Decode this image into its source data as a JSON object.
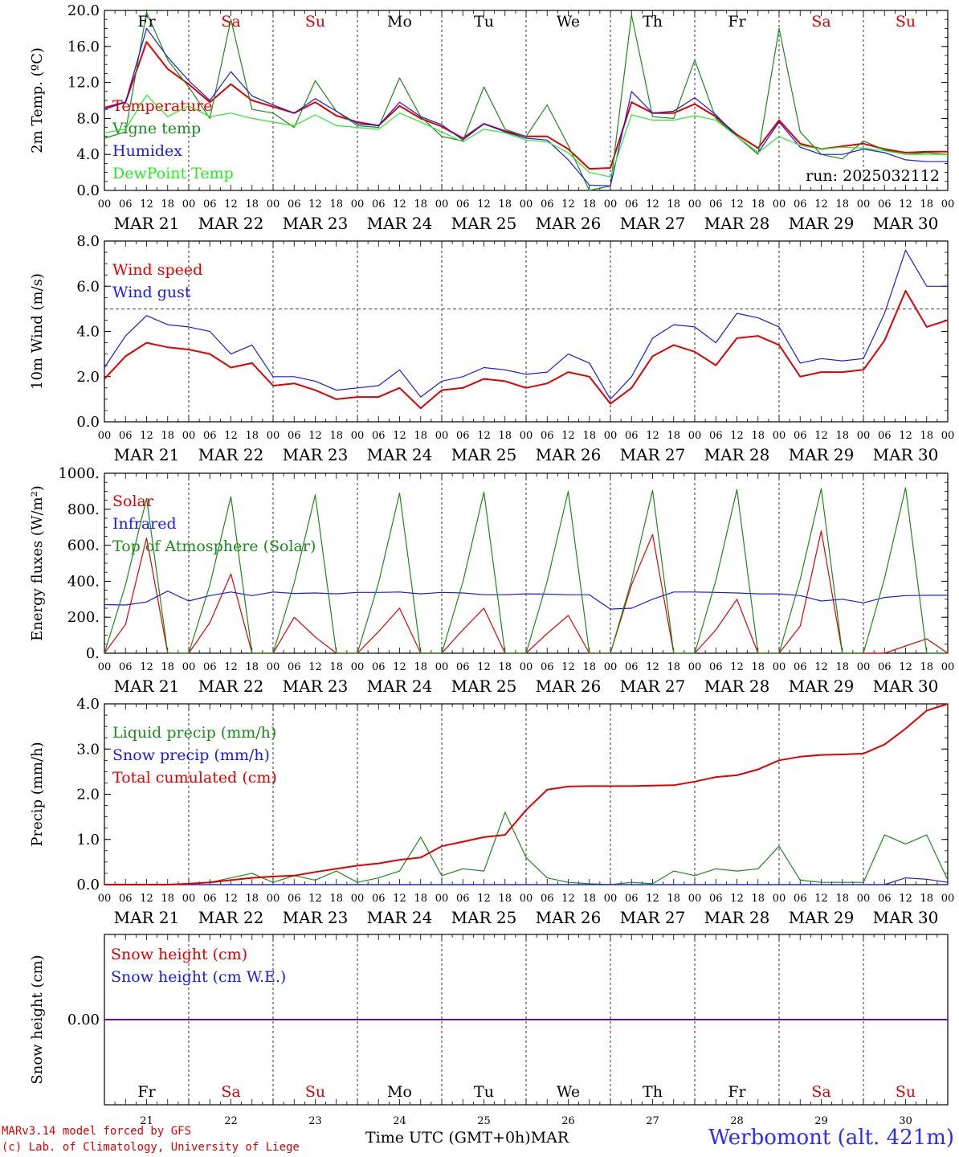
{
  "colors": {
    "red": "#e00000",
    "green": "#1a8a1a",
    "blue": "#1a1ae6",
    "lightgreen": "#22ee22",
    "black": "#000000"
  },
  "days": [
    {
      "abbr": "Fr",
      "date": "21",
      "month_label": "MAR 21",
      "weekend": false
    },
    {
      "abbr": "Sa",
      "date": "22",
      "month_label": "MAR 22",
      "weekend": true
    },
    {
      "abbr": "Su",
      "date": "23",
      "month_label": "MAR 23",
      "weekend": true
    },
    {
      "abbr": "Mo",
      "date": "24",
      "month_label": "MAR 24",
      "weekend": false
    },
    {
      "abbr": "Tu",
      "date": "25",
      "month_label": "MAR 25",
      "weekend": false
    },
    {
      "abbr": "We",
      "date": "26",
      "month_label": "MAR 26",
      "weekend": false
    },
    {
      "abbr": "Th",
      "date": "27",
      "month_label": "MAR 27",
      "weekend": false
    },
    {
      "abbr": "Fr",
      "date": "28",
      "month_label": "MAR 28",
      "weekend": false
    },
    {
      "abbr": "Sa",
      "date": "29",
      "month_label": "MAR 29",
      "weekend": true
    },
    {
      "abbr": "Su",
      "date": "30",
      "month_label": "MAR 30",
      "weekend": true
    }
  ],
  "hour_ticks": [
    "00",
    "06",
    "12",
    "18"
  ],
  "final_hour_tick": "00",
  "footer": {
    "credit_line1": "MARv3.14 model forced by GFS",
    "credit_line2": "(c) Lab. of Climatology, University of Liege",
    "axis_label": "Time UTC (GMT+0h)",
    "month": "MAR",
    "station": "Werbomont (alt. 421m)"
  },
  "chart_data": [
    {
      "type": "line",
      "ylabel": "2m Temp. (ºC)",
      "ylim": [
        0,
        20
      ],
      "yticks": [
        "0.0",
        "4.0",
        "8.0",
        "12.0",
        "16.0",
        "20.0"
      ],
      "ytick_values": [
        0,
        4,
        8,
        12,
        16,
        20
      ],
      "annotation": "run: 2025032112",
      "x_unit": "hours from 2025-03-21 00 UTC",
      "x": [
        0,
        6,
        12,
        18,
        24,
        30,
        36,
        42,
        48,
        54,
        60,
        66,
        72,
        78,
        84,
        90,
        96,
        102,
        108,
        114,
        120,
        126,
        132,
        138,
        144,
        150,
        156,
        162,
        168,
        174,
        180,
        186,
        192,
        198,
        204,
        210,
        216,
        222,
        228,
        234,
        240
      ],
      "series": [
        {
          "name": "Temperature",
          "color": "red",
          "values": [
            9.2,
            9.8,
            16.5,
            13.5,
            11.8,
            9.8,
            11.8,
            10.0,
            9.3,
            8.6,
            9.8,
            8.3,
            7.6,
            7.2,
            9.4,
            8.0,
            7.1,
            5.8,
            7.4,
            6.6,
            6.0,
            6.0,
            4.6,
            2.4,
            2.5,
            9.8,
            8.6,
            8.6,
            9.6,
            8.2,
            6.2,
            4.7,
            7.8,
            5.2,
            4.6,
            4.9,
            5.2,
            4.6,
            4.2,
            4.3,
            4.3
          ]
        },
        {
          "name": "Vigne temp",
          "color": "green",
          "values": [
            5.8,
            6.5,
            19.8,
            14.5,
            11.5,
            8.0,
            19.0,
            9.0,
            8.6,
            7.0,
            12.2,
            8.8,
            7.2,
            7.0,
            12.5,
            8.2,
            6.0,
            5.5,
            11.5,
            6.8,
            6.0,
            9.5,
            5.0,
            -1.0,
            0.5,
            19.5,
            8.2,
            8.0,
            14.5,
            8.0,
            6.0,
            4.0,
            18.0,
            6.5,
            4.0,
            3.5,
            5.5,
            4.5,
            4.0,
            4.2,
            4.0
          ]
        },
        {
          "name": "Humidex",
          "color": "blue",
          "values": [
            9.0,
            9.8,
            18.0,
            14.8,
            12.2,
            10.0,
            13.2,
            10.5,
            9.5,
            8.6,
            10.2,
            8.8,
            7.4,
            7.2,
            9.8,
            8.2,
            7.3,
            5.6,
            7.4,
            6.5,
            5.8,
            5.6,
            3.4,
            0.6,
            0.5,
            11.0,
            8.6,
            8.8,
            10.3,
            8.4,
            6.0,
            4.2,
            7.6,
            4.8,
            4.0,
            4.0,
            4.6,
            4.2,
            3.4,
            3.2,
            3.2
          ]
        },
        {
          "name": "DewPoint Temp",
          "color": "lightgreen",
          "values": [
            6.4,
            6.8,
            10.6,
            8.2,
            9.4,
            8.2,
            8.6,
            8.0,
            7.6,
            7.2,
            8.4,
            7.2,
            7.0,
            6.8,
            8.6,
            7.6,
            6.5,
            5.4,
            6.8,
            6.4,
            5.6,
            5.4,
            4.2,
            2.0,
            1.5,
            8.4,
            7.8,
            7.8,
            8.3,
            7.8,
            6.0,
            4.2,
            6.0,
            5.0,
            4.6,
            4.8,
            4.7,
            4.4,
            4.0,
            4.0,
            4.0
          ]
        }
      ]
    },
    {
      "type": "line",
      "ylabel": "10m Wind (m/s)",
      "ylim": [
        0,
        8
      ],
      "yticks": [
        "0.0",
        "2.0",
        "4.0",
        "6.0",
        "8.0"
      ],
      "ytick_values": [
        0,
        2,
        4,
        6,
        8
      ],
      "reference_line": 5.0,
      "x_unit": "hours from 2025-03-21 00 UTC",
      "x": [
        0,
        6,
        12,
        18,
        24,
        30,
        36,
        42,
        48,
        54,
        60,
        66,
        72,
        78,
        84,
        90,
        96,
        102,
        108,
        114,
        120,
        126,
        132,
        138,
        144,
        150,
        156,
        162,
        168,
        174,
        180,
        186,
        192,
        198,
        204,
        210,
        216,
        222,
        228,
        234,
        240
      ],
      "series": [
        {
          "name": "Wind speed",
          "color": "red",
          "values": [
            1.9,
            2.9,
            3.5,
            3.3,
            3.2,
            3.0,
            2.4,
            2.6,
            1.6,
            1.7,
            1.4,
            1.0,
            1.1,
            1.1,
            1.5,
            0.6,
            1.4,
            1.5,
            1.9,
            1.8,
            1.5,
            1.7,
            2.2,
            2.0,
            0.8,
            1.5,
            2.9,
            3.4,
            3.1,
            2.5,
            3.7,
            3.8,
            3.4,
            2.0,
            2.2,
            2.2,
            2.3,
            3.6,
            5.8,
            4.2,
            4.5
          ]
        },
        {
          "name": "Wind gust",
          "color": "blue",
          "values": [
            2.4,
            3.8,
            4.7,
            4.3,
            4.2,
            4.0,
            3.0,
            3.4,
            2.0,
            2.0,
            1.8,
            1.4,
            1.5,
            1.6,
            2.3,
            1.1,
            1.8,
            2.0,
            2.4,
            2.3,
            2.1,
            2.2,
            3.0,
            2.6,
            1.0,
            2.0,
            3.7,
            4.3,
            4.2,
            3.5,
            4.8,
            4.6,
            4.2,
            2.6,
            2.8,
            2.7,
            2.8,
            4.8,
            7.6,
            6.0,
            6.0
          ]
        }
      ]
    },
    {
      "type": "line",
      "ylabel": "Energy fluxes (W/m²)",
      "ylim": [
        0,
        1000
      ],
      "yticks": [
        "0.",
        "200.",
        "400.",
        "600.",
        "800.",
        "1000."
      ],
      "ytick_values": [
        0,
        200,
        400,
        600,
        800,
        1000
      ],
      "x_unit": "hours from 2025-03-21 00 UTC",
      "x": [
        0,
        6,
        12,
        18,
        24,
        30,
        36,
        42,
        48,
        54,
        60,
        66,
        72,
        78,
        84,
        90,
        96,
        102,
        108,
        114,
        120,
        126,
        132,
        138,
        144,
        150,
        156,
        162,
        168,
        174,
        180,
        186,
        192,
        198,
        204,
        210,
        216,
        222,
        228,
        234,
        240
      ],
      "series": [
        {
          "name": "Solar",
          "color": "red",
          "values": [
            0,
            160,
            640,
            0,
            0,
            170,
            440,
            0,
            0,
            200,
            90,
            0,
            0,
            120,
            250,
            0,
            0,
            130,
            250,
            0,
            0,
            110,
            210,
            0,
            0,
            380,
            660,
            0,
            0,
            130,
            300,
            0,
            0,
            150,
            680,
            0,
            0,
            0,
            40,
            80,
            0
          ]
        },
        {
          "name": "Infrared",
          "color": "blue",
          "values": [
            270,
            268,
            285,
            345,
            290,
            320,
            340,
            320,
            340,
            332,
            335,
            330,
            338,
            338,
            340,
            330,
            338,
            335,
            325,
            325,
            330,
            328,
            325,
            325,
            245,
            250,
            300,
            340,
            340,
            338,
            335,
            330,
            330,
            320,
            290,
            300,
            280,
            310,
            320,
            322,
            322
          ]
        },
        {
          "name": "Top of Atmosphere (Solar)",
          "color": "green",
          "values": [
            0,
            380,
            860,
            0,
            0,
            380,
            870,
            0,
            0,
            390,
            880,
            0,
            0,
            390,
            890,
            0,
            0,
            395,
            895,
            0,
            0,
            400,
            900,
            0,
            0,
            405,
            905,
            0,
            0,
            405,
            910,
            0,
            0,
            410,
            915,
            0,
            0,
            415,
            920,
            0,
            0
          ]
        }
      ]
    },
    {
      "type": "line",
      "ylabel": "Precip (mm/h)",
      "ylim": [
        0,
        4
      ],
      "yticks": [
        "0.0",
        "1.0",
        "2.0",
        "3.0",
        "4.0"
      ],
      "ytick_values": [
        0,
        1,
        2,
        3,
        4
      ],
      "x_unit": "hours from 2025-03-21 00 UTC",
      "x": [
        0,
        6,
        12,
        18,
        24,
        30,
        36,
        42,
        48,
        54,
        60,
        66,
        72,
        78,
        84,
        90,
        96,
        102,
        108,
        114,
        120,
        126,
        132,
        138,
        144,
        150,
        156,
        162,
        168,
        174,
        180,
        186,
        192,
        198,
        204,
        210,
        216,
        222,
        228,
        234,
        240
      ],
      "series": [
        {
          "name": "Liquid precip (mm/h)",
          "color": "green",
          "values": [
            0,
            0,
            0,
            0,
            0.02,
            0.05,
            0.15,
            0.25,
            0.05,
            0.2,
            0.1,
            0.3,
            0.05,
            0.15,
            0.3,
            1.05,
            0.2,
            0.35,
            0.3,
            1.6,
            0.6,
            0.15,
            0.05,
            0.02,
            0,
            0.05,
            0.02,
            0.3,
            0.2,
            0.35,
            0.3,
            0.35,
            0.85,
            0.1,
            0.05,
            0.05,
            0.05,
            1.1,
            0.9,
            1.1,
            0.1
          ]
        },
        {
          "name": "Snow precip (mm/h)",
          "color": "blue",
          "values": [
            0,
            0,
            0,
            0,
            0,
            0,
            0,
            0,
            0,
            0,
            0,
            0,
            0,
            0,
            0,
            0,
            0,
            0,
            0,
            0,
            0,
            0,
            0,
            0,
            0,
            0,
            0,
            0,
            0,
            0,
            0,
            0,
            0,
            0,
            0,
            0,
            0,
            0,
            0.15,
            0.12,
            0.05
          ]
        },
        {
          "name": "Total cumulated (cm)",
          "color": "red",
          "values": [
            0,
            0,
            0,
            0,
            0.02,
            0.05,
            0.1,
            0.15,
            0.18,
            0.2,
            0.28,
            0.35,
            0.42,
            0.47,
            0.55,
            0.6,
            0.85,
            0.95,
            1.05,
            1.1,
            1.65,
            2.1,
            2.17,
            2.18,
            2.18,
            2.18,
            2.19,
            2.2,
            2.28,
            2.38,
            2.42,
            2.55,
            2.75,
            2.83,
            2.87,
            2.88,
            2.9,
            3.1,
            3.45,
            3.85,
            4.0
          ]
        }
      ]
    },
    {
      "type": "line",
      "ylabel": "Snow height (cm)",
      "yticks": [
        "0.00"
      ],
      "ytick_values": [
        0
      ],
      "x_unit": "hours from 2025-03-21 00 UTC",
      "x": [
        0,
        240
      ],
      "series": [
        {
          "name": "Snow height (cm)",
          "color": "red",
          "values": [
            0,
            0
          ]
        },
        {
          "name": "Snow height (cm W.E.)",
          "color": "blue",
          "values": [
            0,
            0
          ]
        }
      ]
    }
  ]
}
